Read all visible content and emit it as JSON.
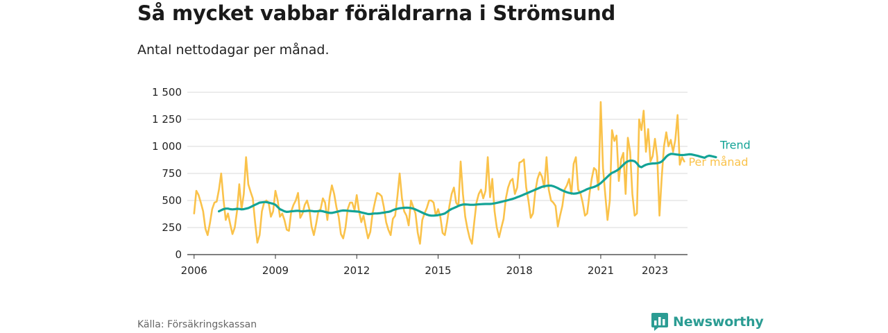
{
  "header": {
    "title": "Så mycket vabbar föräldrarna i Strömsund",
    "subtitle": "Antal nettodagar per månad."
  },
  "footer": {
    "source": "Källa: Försäkringskassan",
    "brand": "Newsworthy"
  },
  "colors": {
    "monthly": "#fac24a",
    "trend": "#13a396",
    "grid": "#d9d9d9",
    "axis": "#333333",
    "brand": "#2b9c93"
  },
  "chart_data": {
    "type": "line",
    "title": "Så mycket vabbar föräldrarna i Strömsund",
    "subtitle": "Antal nettodagar per månad.",
    "xlabel": "",
    "ylabel": "",
    "x_start": "2006-01",
    "x_unit": "month",
    "xlim": [
      2005.75,
      2024.2
    ],
    "ylim": [
      0,
      1500
    ],
    "grid": true,
    "y_ticks": [
      {
        "value": 0,
        "label": "0"
      },
      {
        "value": 250,
        "label": "250"
      },
      {
        "value": 500,
        "label": "500"
      },
      {
        "value": 750,
        "label": "750"
      },
      {
        "value": 1000,
        "label": "1 000"
      },
      {
        "value": 1250,
        "label": "1 250"
      },
      {
        "value": 1500,
        "label": "1 500"
      }
    ],
    "x_ticks": [
      {
        "value": 2006,
        "label": "2006"
      },
      {
        "value": 2009,
        "label": "2009"
      },
      {
        "value": 2012,
        "label": "2012"
      },
      {
        "value": 2015,
        "label": "2015"
      },
      {
        "value": 2018,
        "label": "2018"
      },
      {
        "value": 2021,
        "label": "2021"
      },
      {
        "value": 2023,
        "label": "2023"
      }
    ],
    "series": [
      {
        "name": "Per månad",
        "color": "#fac24a",
        "start": "2006-01",
        "values": [
          380,
          590,
          550,
          480,
          400,
          240,
          180,
          290,
          420,
          480,
          490,
          600,
          750,
          510,
          320,
          380,
          280,
          190,
          250,
          400,
          650,
          420,
          560,
          900,
          650,
          580,
          520,
          300,
          110,
          180,
          400,
          480,
          500,
          480,
          350,
          400,
          590,
          500,
          350,
          380,
          320,
          230,
          220,
          400,
          460,
          500,
          570,
          340,
          380,
          460,
          500,
          420,
          260,
          180,
          280,
          400,
          420,
          520,
          480,
          320,
          530,
          640,
          560,
          440,
          350,
          190,
          150,
          250,
          420,
          480,
          480,
          410,
          550,
          400,
          300,
          360,
          250,
          150,
          210,
          380,
          480,
          570,
          560,
          540,
          440,
          300,
          230,
          180,
          330,
          360,
          540,
          750,
          520,
          400,
          360,
          270,
          500,
          440,
          380,
          200,
          100,
          320,
          380,
          430,
          500,
          500,
          480,
          360,
          420,
          350,
          200,
          180,
          300,
          450,
          560,
          620,
          480,
          450,
          860,
          560,
          350,
          240,
          150,
          100,
          300,
          480,
          560,
          600,
          520,
          590,
          900,
          530,
          700,
          400,
          250,
          160,
          250,
          330,
          520,
          620,
          680,
          700,
          560,
          620,
          850,
          860,
          880,
          620,
          500,
          340,
          380,
          580,
          700,
          760,
          720,
          620,
          900,
          600,
          500,
          480,
          450,
          260,
          360,
          450,
          600,
          640,
          700,
          560,
          840,
          900,
          600,
          570,
          480,
          360,
          380,
          560,
          700,
          800,
          780,
          600,
          1410,
          800,
          550,
          320,
          500,
          1150,
          1050,
          1100,
          680,
          880,
          940,
          560,
          1080,
          950,
          560,
          360,
          380,
          1250,
          1150,
          1330,
          950,
          1160,
          860,
          910,
          1070,
          900,
          360,
          720,
          1000,
          1130,
          1000,
          1060,
          950,
          1060,
          1290,
          830,
          900,
          860
        ]
      },
      {
        "name": "Trend",
        "color": "#13a396",
        "start": "2006-12",
        "values": [
          400,
          410,
          420,
          425,
          425,
          420,
          418,
          420,
          423,
          422,
          418,
          420,
          425,
          430,
          440,
          450,
          460,
          470,
          480,
          483,
          485,
          485,
          480,
          475,
          470,
          460,
          440,
          420,
          410,
          400,
          395,
          397,
          400,
          402,
          404,
          405,
          402,
          400,
          402,
          404,
          405,
          403,
          400,
          400,
          402,
          404,
          400,
          395,
          390,
          385,
          385,
          390,
          395,
          400,
          405,
          408,
          407,
          405,
          403,
          401,
          400,
          398,
          396,
          390,
          385,
          380,
          375,
          375,
          378,
          380,
          380,
          382,
          385,
          388,
          392,
          395,
          400,
          410,
          418,
          424,
          428,
          431,
          433,
          434,
          433,
          430,
          425,
          417,
          408,
          398,
          388,
          378,
          370,
          363,
          360,
          360,
          362,
          365,
          369,
          374,
          380,
          395,
          410,
          422,
          431,
          440,
          450,
          458,
          463,
          464,
          463,
          461,
          460,
          461,
          463,
          465,
          466,
          467,
          468,
          468,
          468,
          470,
          474,
          478,
          483,
          488,
          493,
          498,
          503,
          509,
          515,
          522,
          530,
          538,
          546,
          555,
          564,
          573,
          582,
          591,
          600,
          609,
          618,
          626,
          632,
          635,
          637,
          637,
          632,
          624,
          614,
          603,
          593,
          584,
          576,
          570,
          566,
          563,
          565,
          569,
          576,
          585,
          595,
          605,
          613,
          619,
          625,
          634,
          645,
          660,
          680,
          700,
          720,
          740,
          755,
          765,
          775,
          790,
          810,
          830,
          850,
          862,
          868,
          868,
          862,
          843,
          816,
          808,
          820,
          830,
          836,
          840,
          842,
          843,
          845,
          850,
          860,
          880,
          905,
          922,
          930,
          930,
          927,
          924,
          921,
          920,
          921,
          924,
          927,
          926,
          922,
          917,
          912,
          906,
          900,
          895,
          908,
          914,
          910,
          905,
          900
        ]
      }
    ],
    "legend": [
      {
        "name": "Trend",
        "placement": "right-end"
      },
      {
        "name": "Per månad",
        "placement": "right-end"
      }
    ]
  }
}
